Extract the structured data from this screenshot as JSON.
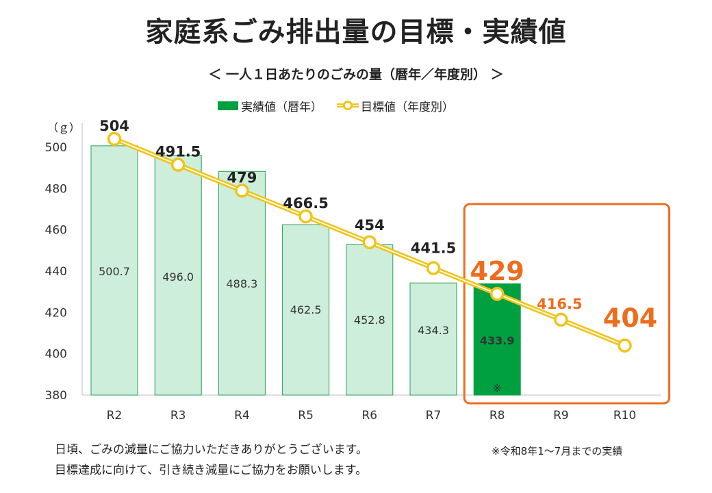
{
  "title": "家庭系ごみ排出量の目標・実績値",
  "subtitle": "＜ 一人１日あたりのごみの量（暦年／年度別） ＞",
  "legend": {
    "actual": "実績値（暦年）",
    "target": "目標値（年度別）"
  },
  "footer": {
    "line1": "日頃、ごみの減量にご協力いただきありがとうございます。",
    "line2": "目標達成に向けて、引き続き減量にご協力をお願いします。"
  },
  "note": "※令和8年1～7月までの実績",
  "chart_data": {
    "type": "bar",
    "y_unit_label": "（ｇ）",
    "categories": [
      "R2",
      "R3",
      "R4",
      "R5",
      "R6",
      "R7",
      "R8",
      "R9",
      "R10"
    ],
    "ylim": [
      380,
      500
    ],
    "yticks": [
      380,
      400,
      420,
      440,
      460,
      480,
      500
    ],
    "series": [
      {
        "name": "実績値（暦年）",
        "type": "bar",
        "values": [
          500.7,
          496.0,
          488.3,
          462.5,
          452.8,
          434.3,
          433.9,
          null,
          null
        ],
        "labels": [
          "500.7",
          "496.0",
          "488.3",
          "462.5",
          "452.8",
          "434.3",
          "433.9",
          "",
          ""
        ],
        "highlight_index": 6,
        "highlight_mark": "※"
      },
      {
        "name": "目標値（年度別）",
        "type": "line",
        "values": [
          504,
          491.5,
          479,
          466.5,
          454,
          441.5,
          429,
          416.5,
          404
        ],
        "labels": [
          "504",
          "491.5",
          "479",
          "466.5",
          "454",
          "441.5",
          "429",
          "416.5",
          "404"
        ]
      }
    ],
    "highlight_range": [
      "R8",
      "R10"
    ],
    "grid": false,
    "legend_position": "top-center",
    "colors": {
      "bar": "#cdeedb",
      "bar_border": "#2e9e55",
      "bar_highlight": "#00a040",
      "line": "#f0c419",
      "line_inner": "#ffffff",
      "label": "#222222",
      "future_label": "#ed6d1f",
      "highlight_box": "#ed6d1f"
    }
  }
}
